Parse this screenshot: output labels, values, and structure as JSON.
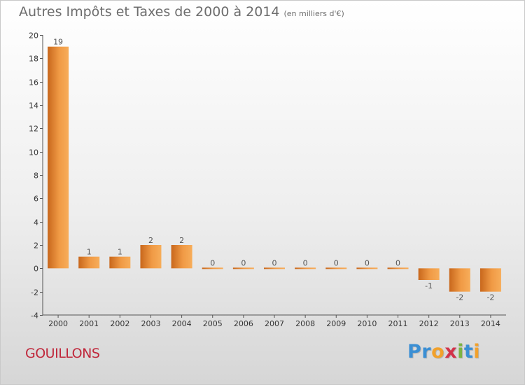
{
  "chart_data": {
    "type": "bar",
    "title": "Autres Impôts et Taxes de 2000 à 2014",
    "unit_note": "(en milliers d'€)",
    "categories": [
      "2000",
      "2001",
      "2002",
      "2003",
      "2004",
      "2005",
      "2006",
      "2007",
      "2008",
      "2009",
      "2010",
      "2011",
      "2012",
      "2013",
      "2014"
    ],
    "values": [
      19,
      1,
      1,
      2,
      2,
      0,
      0,
      0,
      0,
      0,
      0,
      0,
      -1,
      -2,
      -2
    ],
    "data_labels": [
      "19",
      "1",
      "1",
      "2",
      "2",
      "0",
      "0",
      "0",
      "0",
      "0",
      "0",
      "0",
      "-1",
      "-2",
      "-2"
    ],
    "ylim": [
      -4,
      20
    ],
    "yticks": [
      -4,
      -2,
      0,
      2,
      4,
      6,
      8,
      10,
      12,
      14,
      16,
      18,
      20
    ],
    "ytick_labels": [
      "-4",
      "-2",
      "0",
      "2",
      "4",
      "6",
      "8",
      "10",
      "12",
      "14",
      "16",
      "18",
      "20"
    ],
    "xlabel": "",
    "ylabel": "",
    "grid": false,
    "bar_color": "#e0852e"
  },
  "footer": {
    "commune": "GOUILLONS",
    "brand_letters": [
      {
        "ch": "P",
        "color": "#3b8fd4"
      },
      {
        "ch": "r",
        "color": "#3b8fd4"
      },
      {
        "ch": "o",
        "color": "#f2a12b"
      },
      {
        "ch": "x",
        "color": "#d2334a"
      },
      {
        "ch": "i",
        "color": "#7cb342"
      },
      {
        "ch": "t",
        "color": "#3b8fd4"
      },
      {
        "ch": "i",
        "color": "#f2a12b"
      }
    ]
  }
}
